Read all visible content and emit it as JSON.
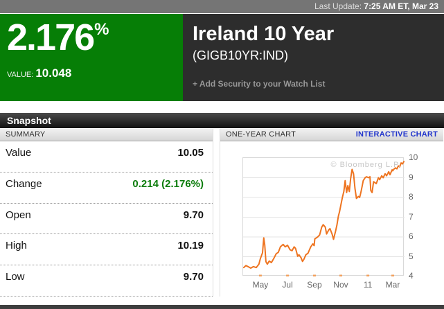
{
  "top_bar": {
    "last_update_label": "Last Update:",
    "last_update_time": "7:25 AM ET",
    "last_update_date": ", Mar 23"
  },
  "header": {
    "change_percent": "2.176",
    "percent_sign": "%",
    "value_label": "VALUE:",
    "value": "10.048",
    "security_name": "Ireland 10 Year",
    "ticker": "(GIGB10YR:IND)",
    "watchlist_link": "+ Add Security to your Watch List"
  },
  "tabs": {
    "snapshot": "Snapshot"
  },
  "summary": {
    "title": "SUMMARY",
    "rows": [
      {
        "label": "Value",
        "value": "10.05"
      },
      {
        "label": "Change",
        "value": "0.214 (2.176%)"
      },
      {
        "label": "Open",
        "value": "9.70"
      },
      {
        "label": "High",
        "value": "10.19"
      },
      {
        "label": "Low",
        "value": "9.70"
      }
    ]
  },
  "chart_panel": {
    "title": "ONE-YEAR CHART",
    "link": "INTERACTIVE CHART"
  },
  "chart_data": {
    "type": "line",
    "title": "ONE-YEAR CHART",
    "watermark": "© Bloomberg L.P.",
    "ylim": [
      4,
      10
    ],
    "y_ticks": [
      10,
      9,
      8,
      7,
      6,
      5,
      4
    ],
    "x_ticks": [
      {
        "label": "May",
        "pct": 10.7
      },
      {
        "label": "Jul",
        "pct": 27.5
      },
      {
        "label": "Sep",
        "pct": 44.2
      },
      {
        "label": "Nov",
        "pct": 60.5
      },
      {
        "label": "11",
        "pct": 77.3
      },
      {
        "label": "Mar",
        "pct": 92.7
      }
    ],
    "line_color": "#ee7420",
    "tick_mark_color": "#f2a05c",
    "points": [
      [
        0.4,
        4.45
      ],
      [
        1.7,
        4.55
      ],
      [
        3.0,
        4.5
      ],
      [
        4.7,
        4.42
      ],
      [
        6.4,
        4.5
      ],
      [
        8.1,
        4.45
      ],
      [
        9.8,
        4.62
      ],
      [
        10.7,
        4.9
      ],
      [
        12.0,
        5.2
      ],
      [
        12.8,
        5.95
      ],
      [
        13.4,
        5.6
      ],
      [
        14.1,
        4.75
      ],
      [
        15.0,
        4.62
      ],
      [
        16.2,
        4.78
      ],
      [
        17.5,
        4.7
      ],
      [
        18.8,
        4.88
      ],
      [
        20.5,
        5.15
      ],
      [
        21.8,
        5.22
      ],
      [
        23.1,
        5.5
      ],
      [
        24.8,
        5.62
      ],
      [
        26.1,
        5.5
      ],
      [
        27.5,
        5.58
      ],
      [
        29.1,
        5.35
      ],
      [
        30.3,
        5.3
      ],
      [
        31.6,
        5.5
      ],
      [
        32.5,
        5.42
      ],
      [
        33.8,
        5.02
      ],
      [
        34.6,
        5.1
      ],
      [
        35.9,
        4.95
      ],
      [
        36.8,
        4.76
      ],
      [
        37.6,
        4.86
      ],
      [
        38.9,
        5.1
      ],
      [
        40.2,
        5.18
      ],
      [
        41.9,
        5.5
      ],
      [
        43.2,
        5.65
      ],
      [
        44.0,
        5.56
      ],
      [
        44.4,
        5.9
      ],
      [
        46.2,
        6.0
      ],
      [
        47.4,
        6.1
      ],
      [
        48.7,
        6.5
      ],
      [
        49.6,
        6.62
      ],
      [
        50.9,
        6.5
      ],
      [
        51.7,
        6.15
      ],
      [
        53.0,
        6.35
      ],
      [
        53.8,
        6.42
      ],
      [
        55.1,
        6.15
      ],
      [
        56.0,
        5.88
      ],
      [
        57.3,
        6.3
      ],
      [
        58.1,
        6.6
      ],
      [
        59.0,
        7.05
      ],
      [
        59.8,
        7.3
      ],
      [
        60.5,
        7.6
      ],
      [
        61.5,
        8.0
      ],
      [
        62.4,
        8.3
      ],
      [
        63.2,
        8.85
      ],
      [
        64.1,
        8.25
      ],
      [
        64.9,
        8.6
      ],
      [
        65.8,
        8.3
      ],
      [
        66.6,
        8.95
      ],
      [
        67.5,
        9.42
      ],
      [
        68.4,
        9.2
      ],
      [
        69.3,
        8.45
      ],
      [
        70.2,
        7.95
      ],
      [
        71.4,
        8.05
      ],
      [
        72.2,
        8.0
      ],
      [
        73.1,
        8.3
      ],
      [
        74.4,
        8.85
      ],
      [
        75.6,
        9.0
      ],
      [
        76.5,
        9.05
      ],
      [
        77.8,
        9.0
      ],
      [
        78.6,
        9.05
      ],
      [
        79.1,
        8.35
      ],
      [
        79.9,
        8.25
      ],
      [
        80.8,
        8.8
      ],
      [
        81.6,
        8.75
      ],
      [
        82.5,
        8.7
      ],
      [
        83.8,
        9.0
      ],
      [
        84.6,
        8.9
      ],
      [
        85.9,
        9.1
      ],
      [
        86.8,
        9.0
      ],
      [
        88.0,
        9.2
      ],
      [
        88.9,
        9.1
      ],
      [
        90.2,
        9.3
      ],
      [
        91.0,
        9.15
      ],
      [
        92.3,
        9.4
      ],
      [
        92.7,
        9.35
      ],
      [
        93.6,
        9.45
      ],
      [
        94.4,
        9.5
      ],
      [
        95.3,
        9.45
      ],
      [
        96.2,
        9.6
      ],
      [
        97.0,
        9.55
      ],
      [
        97.9,
        9.75
      ],
      [
        98.7,
        9.7
      ],
      [
        99.6,
        9.82
      ]
    ]
  },
  "colors": {
    "accent_green": "#067e06",
    "change_green": "#0b7c0b",
    "line_orange": "#ee7420",
    "link_blue": "#2135cc",
    "header_dark": "#2d2d2d"
  }
}
